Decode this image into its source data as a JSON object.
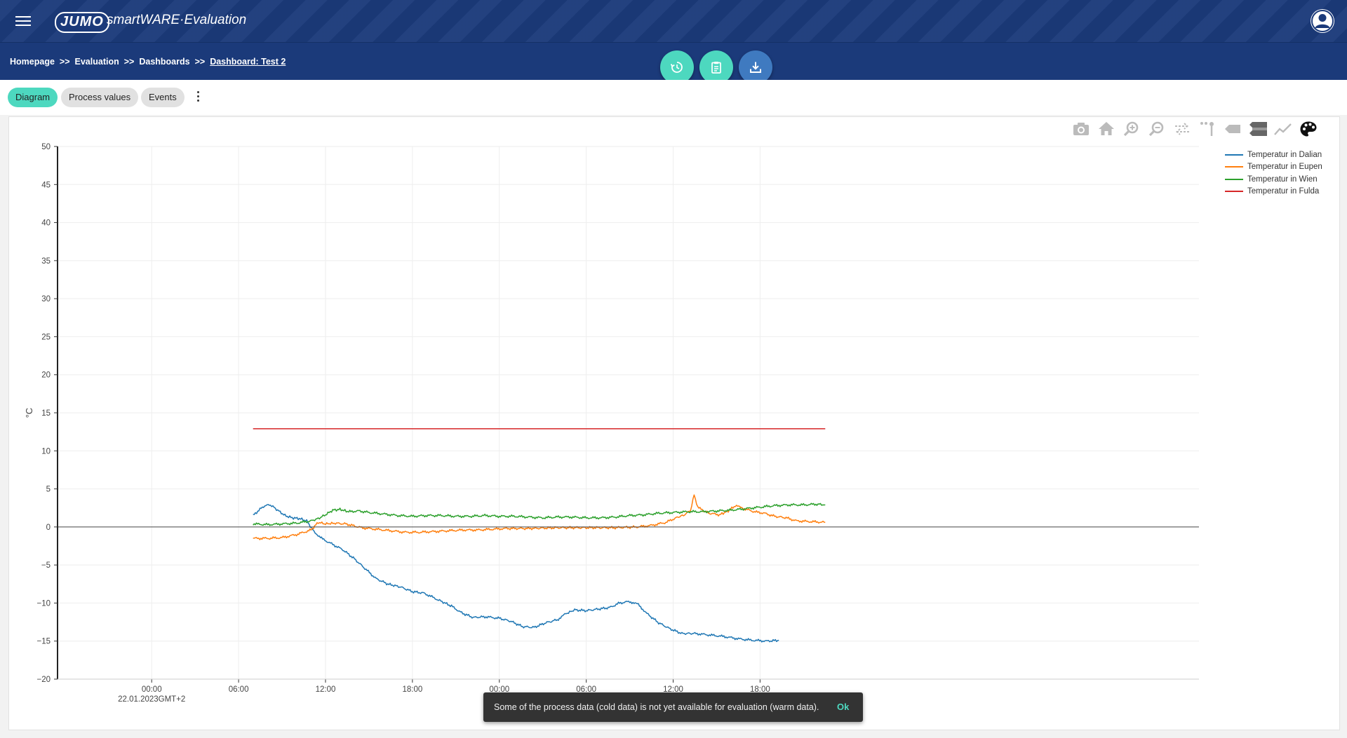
{
  "header": {
    "logo_text": "JUMO",
    "app_title": "smartWARE·Evaluation"
  },
  "breadcrumb": [
    {
      "label": "Homepage"
    },
    {
      "label": "Evaluation"
    },
    {
      "label": "Dashboards"
    },
    {
      "label": "Dashboard: Test 2"
    }
  ],
  "breadcrumb_separator": ">>",
  "tabs": [
    {
      "label": "Diagram",
      "active": true
    },
    {
      "label": "Process values",
      "active": false
    },
    {
      "label": "Events",
      "active": false
    }
  ],
  "fabs": [
    {
      "icon": "history-icon",
      "color": "#4dd8bf"
    },
    {
      "icon": "clipboard-icon",
      "color": "#4dd8bf"
    },
    {
      "icon": "download-icon",
      "color": "#3f7ac0"
    }
  ],
  "modebar_icons": [
    "camera-icon",
    "home-icon",
    "zoom-in-icon",
    "zoom-out-icon",
    "pan-icon",
    "box-select-icon",
    "hover-closest-icon",
    "hover-compare-icon",
    "spike-lines-icon",
    "palette-icon"
  ],
  "toast": {
    "message": "Some of the process data (cold data) is not yet available for evaluation (warm data).",
    "action": "Ok"
  },
  "chart_data": {
    "type": "line",
    "ylabel": "°C",
    "ylim": [
      -20,
      50
    ],
    "yticks": [
      "−20",
      "−15",
      "−10",
      "−5",
      "0",
      "5",
      "10",
      "15",
      "20",
      "25",
      "30",
      "35",
      "40",
      "45",
      "50"
    ],
    "x_range_hours": [
      -6.5,
      72.3
    ],
    "xticks": [
      {
        "hour": 0,
        "label": "00:00",
        "sublabel": "22.01.2023GMT+2"
      },
      {
        "hour": 6,
        "label": "06:00"
      },
      {
        "hour": 12,
        "label": "12:00"
      },
      {
        "hour": 18,
        "label": "18:00"
      },
      {
        "hour": 24,
        "label": "00:00"
      },
      {
        "hour": 30,
        "label": "06:00"
      },
      {
        "hour": 36,
        "label": "12:00"
      },
      {
        "hour": 42,
        "label": "18:00"
      }
    ],
    "grid": true,
    "legend_position": "top-right",
    "series": [
      {
        "name": "Temperatur in Dalian",
        "color": "#1f77b4",
        "points": [
          [
            7,
            1.5
          ],
          [
            7.4,
            2.2
          ],
          [
            7.8,
            2.8
          ],
          [
            8.2,
            2.9
          ],
          [
            8.7,
            2.2
          ],
          [
            9.2,
            1.5
          ],
          [
            9.7,
            1.2
          ],
          [
            10.2,
            1.1
          ],
          [
            10.7,
            0.8
          ],
          [
            11.2,
            -0.6
          ],
          [
            11.8,
            -1.6
          ],
          [
            12.5,
            -2.3
          ],
          [
            13.2,
            -3
          ],
          [
            14,
            -4.2
          ],
          [
            14.8,
            -5.6
          ],
          [
            15.5,
            -6.8
          ],
          [
            16.3,
            -7.5
          ],
          [
            17.2,
            -7.9
          ],
          [
            18,
            -8.5
          ],
          [
            18.8,
            -8.7
          ],
          [
            19.8,
            -9.6
          ],
          [
            20.7,
            -10.4
          ],
          [
            21.4,
            -11.3
          ],
          [
            22.2,
            -11.9
          ],
          [
            23,
            -11.8
          ],
          [
            24,
            -12
          ],
          [
            24.8,
            -12.4
          ],
          [
            25.6,
            -13.1
          ],
          [
            26.4,
            -13.2
          ],
          [
            27.2,
            -12.6
          ],
          [
            28,
            -12.2
          ],
          [
            28.6,
            -11.4
          ],
          [
            29.2,
            -10.9
          ],
          [
            30,
            -11
          ],
          [
            30.8,
            -10.8
          ],
          [
            31.6,
            -10.6
          ],
          [
            32.3,
            -10
          ],
          [
            33,
            -9.8
          ],
          [
            33.6,
            -10.2
          ],
          [
            34.2,
            -11.4
          ],
          [
            35,
            -12.6
          ],
          [
            35.8,
            -13.4
          ],
          [
            36.6,
            -14
          ],
          [
            37.5,
            -14
          ],
          [
            38.5,
            -14.2
          ],
          [
            39.5,
            -14.4
          ],
          [
            40.5,
            -14.7
          ],
          [
            41.5,
            -14.9
          ],
          [
            42.5,
            -15
          ],
          [
            43.3,
            -14.9
          ]
        ]
      },
      {
        "name": "Temperatur in Eupen",
        "color": "#ff7f0e",
        "points": [
          [
            7,
            -1.5
          ],
          [
            8,
            -1.5
          ],
          [
            9,
            -1.4
          ],
          [
            10,
            -1
          ],
          [
            11,
            -0.4
          ],
          [
            11.5,
            0.6
          ],
          [
            12,
            0.4
          ],
          [
            12.6,
            0.5
          ],
          [
            13.4,
            0.4
          ],
          [
            14.5,
            -0.1
          ],
          [
            15.5,
            -0.3
          ],
          [
            16.5,
            -0.5
          ],
          [
            17.5,
            -0.7
          ],
          [
            18.5,
            -0.7
          ],
          [
            19.5,
            -0.6
          ],
          [
            20.5,
            -0.5
          ],
          [
            21.5,
            -0.4
          ],
          [
            22.5,
            -0.4
          ],
          [
            23.5,
            -0.3
          ],
          [
            24.5,
            -0.2
          ],
          [
            26,
            -0.2
          ],
          [
            28,
            -0.1
          ],
          [
            30,
            -0.1
          ],
          [
            32,
            -0.1
          ],
          [
            33.5,
            0
          ],
          [
            34.5,
            0.2
          ],
          [
            35.5,
            0.6
          ],
          [
            36.2,
            1.2
          ],
          [
            36.8,
            1.6
          ],
          [
            37.2,
            2.2
          ],
          [
            37.45,
            4.2
          ],
          [
            37.7,
            2.6
          ],
          [
            38,
            2.2
          ],
          [
            38.5,
            1.8
          ],
          [
            39.2,
            1.6
          ],
          [
            39.8,
            2.1
          ],
          [
            40.3,
            2.8
          ],
          [
            40.9,
            2.4
          ],
          [
            41.6,
            2
          ],
          [
            42.3,
            1.8
          ],
          [
            43,
            1.4
          ],
          [
            43.8,
            1.2
          ],
          [
            44.5,
            0.8
          ],
          [
            45.5,
            0.7
          ],
          [
            46.5,
            0.6
          ]
        ]
      },
      {
        "name": "Temperatur in Wien",
        "color": "#2ca02c",
        "points": [
          [
            7,
            0.4
          ],
          [
            8,
            0.3
          ],
          [
            9,
            0.4
          ],
          [
            10,
            0.5
          ],
          [
            11,
            0.8
          ],
          [
            11.5,
            1.1
          ],
          [
            12,
            1.6
          ],
          [
            12.5,
            2.2
          ],
          [
            13,
            2.3
          ],
          [
            13.6,
            2
          ],
          [
            14.3,
            2.1
          ],
          [
            15,
            1.9
          ],
          [
            16,
            1.7
          ],
          [
            17,
            1.5
          ],
          [
            18,
            1.4
          ],
          [
            19,
            1.5
          ],
          [
            20,
            1.5
          ],
          [
            21,
            1.4
          ],
          [
            22,
            1.4
          ],
          [
            23,
            1.5
          ],
          [
            24,
            1.4
          ],
          [
            25,
            1.4
          ],
          [
            26,
            1.3
          ],
          [
            27,
            1.2
          ],
          [
            28,
            1.3
          ],
          [
            29,
            1.3
          ],
          [
            30,
            1.2
          ],
          [
            31,
            1.2
          ],
          [
            32,
            1.3
          ],
          [
            33,
            1.5
          ],
          [
            34,
            1.6
          ],
          [
            35,
            1.8
          ],
          [
            36,
            1.9
          ],
          [
            37,
            2
          ],
          [
            38,
            2
          ],
          [
            39,
            2.1
          ],
          [
            40,
            2.2
          ],
          [
            41,
            2.4
          ],
          [
            42,
            2.6
          ],
          [
            43,
            2.8
          ],
          [
            44,
            2.9
          ],
          [
            45,
            2.9
          ],
          [
            46,
            3
          ],
          [
            46.5,
            2.9
          ]
        ]
      },
      {
        "name": "Temperatur in Fulda",
        "color": "#d62728",
        "points": [
          [
            7,
            12.9
          ],
          [
            46.5,
            12.9
          ]
        ]
      }
    ]
  }
}
